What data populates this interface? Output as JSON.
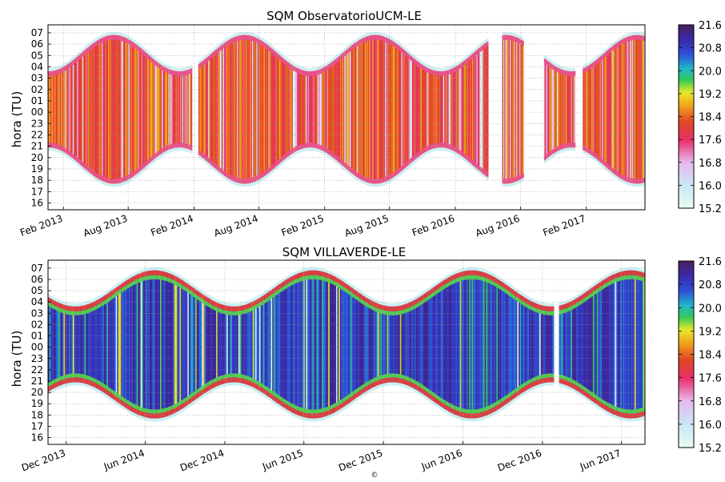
{
  "footer": {
    "copyright": "©"
  },
  "chart_data": [
    {
      "type": "heatmap",
      "title": "SQM ObservatorioUCM-LE",
      "ylabel": "hora (TU)",
      "yticks": [
        "07",
        "06",
        "05",
        "04",
        "03",
        "02",
        "01",
        "00",
        "23",
        "22",
        "21",
        "20",
        "19",
        "18",
        "17",
        "16"
      ],
      "xticks": [
        "Feb 2013",
        "Aug 2013",
        "Feb 2014",
        "Aug 2014",
        "Feb 2015",
        "Aug 2015",
        "Feb 2016",
        "Aug 2016",
        "Feb 2017"
      ],
      "x_range": [
        "2012-12-20",
        "2017-07-15"
      ],
      "colorbar": {
        "ticks": [
          "21.6",
          "20.8",
          "20.0",
          "19.2",
          "18.4",
          "17.6",
          "16.8",
          "16.0",
          "15.2"
        ],
        "range": [
          15.2,
          21.6
        ]
      },
      "dominant_value": 18.2,
      "gaps": [
        [
          "2014-01-25",
          "2014-02-12"
        ],
        [
          "2016-05-01",
          "2016-06-10"
        ],
        [
          "2016-08-10",
          "2016-10-05"
        ],
        [
          "2017-01-01",
          "2017-01-20"
        ]
      ],
      "grid": true
    },
    {
      "type": "heatmap",
      "title": "SQM VILLAVERDE-LE",
      "ylabel": "hora (TU)",
      "yticks": [
        "07",
        "06",
        "05",
        "04",
        "03",
        "02",
        "01",
        "00",
        "23",
        "22",
        "21",
        "20",
        "19",
        "18",
        "17",
        "16"
      ],
      "xticks": [
        "Dec 2013",
        "Jun 2014",
        "Dec 2014",
        "Jun 2015",
        "Dec 2015",
        "Jun 2016",
        "Dec 2016",
        "Jun 2017"
      ],
      "x_range": [
        "2013-10-20",
        "2017-07-25"
      ],
      "colorbar": {
        "ticks": [
          "21.6",
          "20.8",
          "20.0",
          "19.2",
          "18.4",
          "17.6",
          "16.8",
          "16.0",
          "15.2"
        ],
        "range": [
          15.2,
          21.6
        ]
      },
      "dominant_value": 20.9,
      "gaps": [
        [
          "2016-12-25",
          "2017-01-05"
        ]
      ],
      "grid": true
    }
  ]
}
